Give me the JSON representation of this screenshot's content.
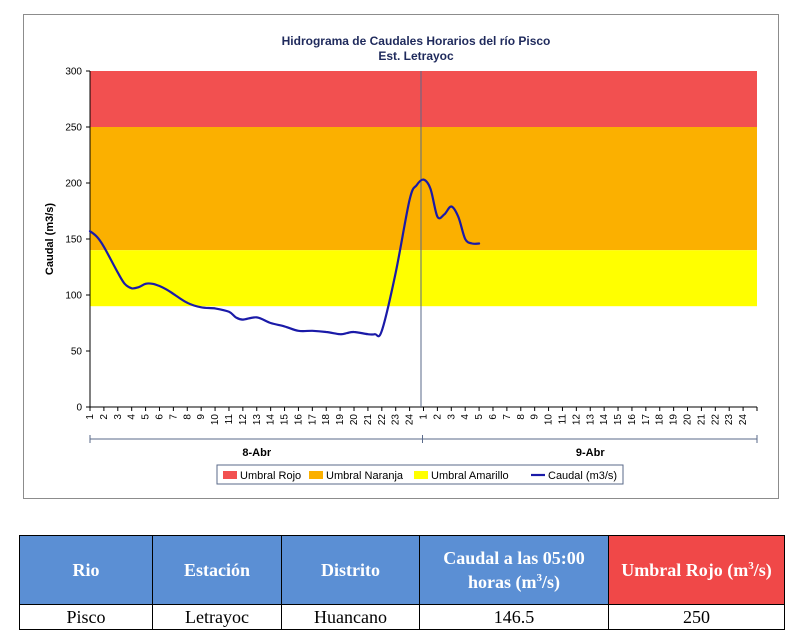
{
  "chart_data": {
    "type": "line",
    "title": "Hidrograma de Caudales Horarios del río Pisco",
    "subtitle": "Est. Letrayoc",
    "ylabel": "Caudal  (m3/s)",
    "ylim": [
      0,
      300
    ],
    "yticks": [
      "0",
      "50",
      "100",
      "150",
      "200",
      "250",
      "300"
    ],
    "xticks_day1": [
      "1",
      "2",
      "3",
      "4",
      "5",
      "6",
      "7",
      "8",
      "9",
      "10",
      "11",
      "12",
      "13",
      "14",
      "15",
      "16",
      "17",
      "18",
      "19",
      "20",
      "21",
      "22",
      "23",
      "24"
    ],
    "xticks_day2": [
      "1",
      "2",
      "3",
      "4",
      "5",
      "6",
      "7",
      "8",
      "9",
      "10",
      "11",
      "12",
      "13",
      "14",
      "15",
      "16",
      "17",
      "18",
      "19",
      "20",
      "21",
      "22",
      "23",
      "24"
    ],
    "day_labels": [
      "8-Abr",
      "9-Abr"
    ],
    "bands": [
      {
        "name": "Umbral Rojo",
        "from": 250,
        "to": 300,
        "color": "#f25050"
      },
      {
        "name": "Umbral Naranja",
        "from": 140,
        "to": 250,
        "color": "#fbb000"
      },
      {
        "name": "Umbral Amarillo",
        "from": 90,
        "to": 140,
        "color": "#ffff00"
      }
    ],
    "series": [
      {
        "name": "Caudal (m3/s)",
        "color": "#1a1aa8",
        "hours": [
          1,
          1.5,
          2,
          3,
          3.5,
          4,
          4.5,
          5,
          5.5,
          6,
          6.5,
          7,
          8,
          9,
          10,
          11,
          11.5,
          12,
          13,
          14,
          15,
          16,
          17,
          18,
          19,
          19.5,
          20,
          21,
          21.5,
          22,
          23,
          24,
          24.5,
          25,
          25.5,
          26,
          26.5,
          27,
          27.5,
          28,
          28.5,
          29
        ],
        "values": [
          157,
          152,
          143,
          120,
          110,
          106,
          107,
          110,
          110,
          108,
          105,
          101,
          93,
          89,
          88,
          85,
          80,
          78,
          80,
          75,
          72,
          68,
          68,
          67,
          65,
          66,
          67,
          65,
          65,
          68,
          120,
          185,
          198,
          203,
          195,
          170,
          172,
          179,
          170,
          150,
          146,
          146
        ]
      }
    ],
    "legend": [
      "Umbral Rojo",
      "Umbral Naranja",
      "Umbral Amarillo",
      "Caudal (m3/s)"
    ],
    "legend_position": "bottom"
  },
  "table": {
    "headers": {
      "rio": "Rio",
      "estacion": "Estación",
      "distrito": "Distrito",
      "caudal_pre": "Caudal a las 05:00 horas (m",
      "caudal_sup": "3",
      "caudal_post": "/s)",
      "umbral_pre": "Umbral Rojo (m",
      "umbral_sup": "3",
      "umbral_post": "/s)"
    },
    "row": {
      "rio": "Pisco",
      "estacion": "Letrayoc",
      "distrito": "Huancano",
      "caudal": "146.5",
      "umbral": "250"
    }
  }
}
